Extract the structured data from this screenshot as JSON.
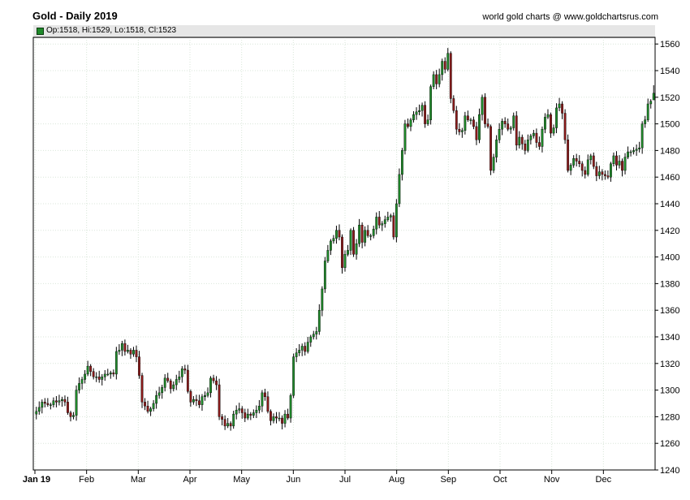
{
  "header": {
    "title": "Gold - Daily 2019",
    "source": "world gold charts @ www.goldchartsrus.com",
    "ohlc": "Op:1518, Hi:1529, Lo:1518, Cl:1523"
  },
  "colors": {
    "up": "#1f8a2a",
    "down": "#8b1a1a",
    "grid": "#d9e6d9",
    "frame": "#000000"
  },
  "chart_data": {
    "type": "candlestick",
    "title": "Gold - Daily 2019",
    "xlabel": "",
    "ylabel": "",
    "ylim": [
      1240,
      1565
    ],
    "grid": true,
    "y_axis_side": "right",
    "y_ticks": [
      1240,
      1260,
      1280,
      1300,
      1320,
      1340,
      1360,
      1380,
      1400,
      1420,
      1440,
      1460,
      1480,
      1500,
      1520,
      1540,
      1560
    ],
    "x_ticks": [
      "Jan 19",
      "Feb",
      "Mar",
      "Apr",
      "May",
      "Jun",
      "Jul",
      "Aug",
      "Sep",
      "Oct",
      "Nov",
      "Dec"
    ],
    "x_tick_bold": "Jan 19",
    "series": [
      {
        "values": [
          1284,
          1287,
          1291,
          1290,
          1289,
          1289,
          1292,
          1291,
          1292,
          1293,
          1291,
          1283,
          1280,
          1281,
          1300,
          1305,
          1308,
          1312,
          1318,
          1314,
          1310,
          1310,
          1308,
          1310,
          1312,
          1312,
          1313,
          1312,
          1329,
          1330,
          1335,
          1329,
          1330,
          1327,
          1330,
          1325,
          1311,
          1291,
          1288,
          1284,
          1286,
          1290,
          1296,
          1298,
          1302,
          1309,
          1307,
          1301,
          1304,
          1308,
          1310,
          1316,
          1315,
          1299,
          1291,
          1293,
          1292,
          1289,
          1295,
          1296,
          1298,
          1309,
          1307,
          1304,
          1280,
          1278,
          1273,
          1275,
          1273,
          1282,
          1285,
          1286,
          1283,
          1279,
          1282,
          1281,
          1283,
          1285,
          1288,
          1298,
          1295,
          1284,
          1277,
          1280,
          1279,
          1279,
          1275,
          1282,
          1279,
          1296,
          1325,
          1328,
          1330,
          1333,
          1329,
          1336,
          1340,
          1342,
          1344,
          1360,
          1376,
          1397,
          1405,
          1412,
          1414,
          1420,
          1415,
          1392,
          1402,
          1405,
          1420,
          1402,
          1410,
          1424,
          1411,
          1420,
          1416,
          1416,
          1421,
          1430,
          1424,
          1425,
          1428,
          1430,
          1431,
          1415,
          1440,
          1462,
          1480,
          1500,
          1498,
          1503,
          1507,
          1509,
          1510,
          1514,
          1500,
          1503,
          1528,
          1537,
          1530,
          1537,
          1547,
          1541,
          1553,
          1519,
          1510,
          1496,
          1494,
          1495,
          1506,
          1503,
          1503,
          1498,
          1488,
          1507,
          1520,
          1500,
          1498,
          1465,
          1475,
          1488,
          1496,
          1502,
          1500,
          1496,
          1497,
          1506,
          1484,
          1490,
          1485,
          1480,
          1488,
          1491,
          1493,
          1486,
          1483,
          1496,
          1505,
          1507,
          1493,
          1497,
          1512,
          1515,
          1508,
          1488,
          1465,
          1469,
          1474,
          1472,
          1470,
          1465,
          1462,
          1473,
          1476,
          1468,
          1461,
          1464,
          1462,
          1461,
          1460,
          1470,
          1476,
          1469,
          1472,
          1465,
          1475,
          1479,
          1479,
          1480,
          1481,
          1482,
          1500,
          1503,
          1515,
          1517,
          1523
        ]
      }
    ],
    "last_candle": {
      "open": 1518,
      "high": 1529,
      "low": 1518,
      "close": 1523
    }
  }
}
